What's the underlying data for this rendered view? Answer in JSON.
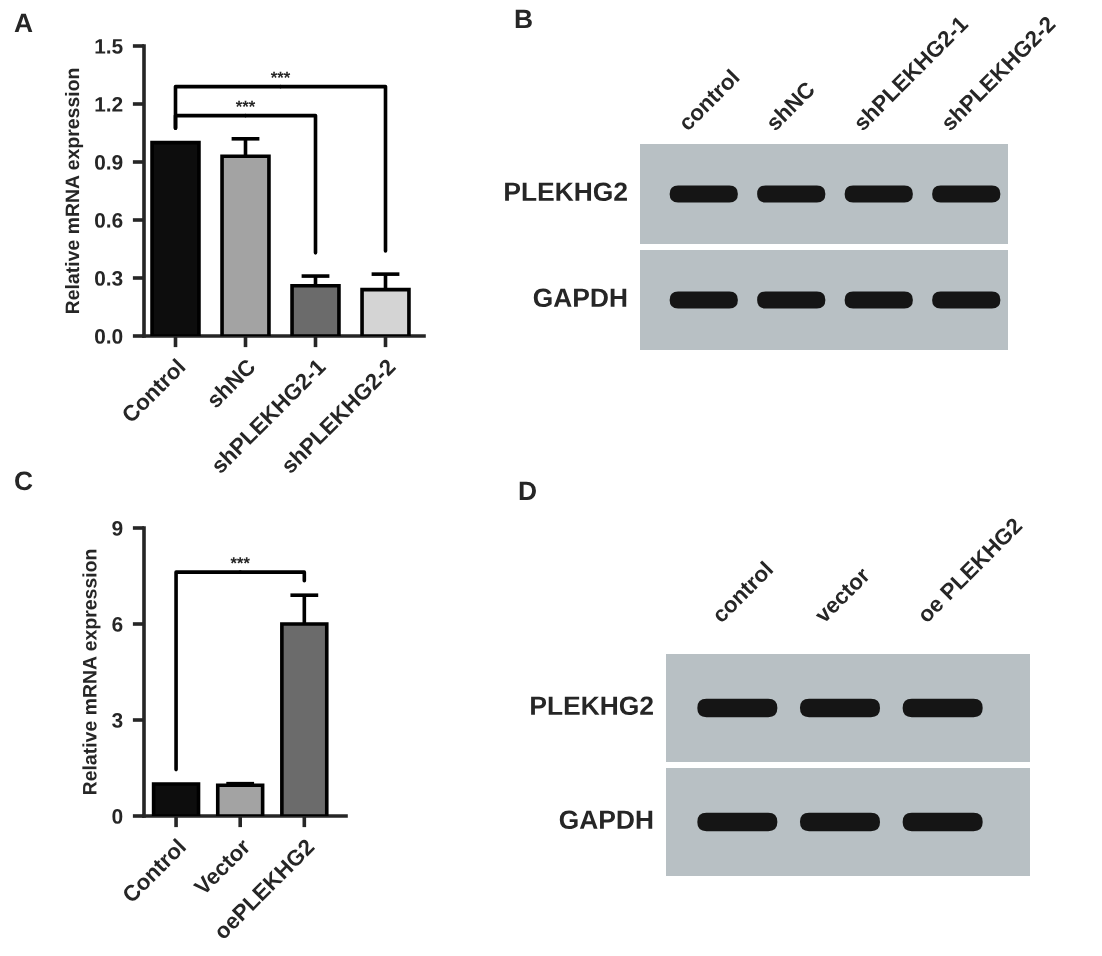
{
  "chart_data": [
    {
      "type": "bar",
      "title": "A",
      "categories": [
        "Control",
        "shNC",
        "shPLEKHG2-1",
        "shPLEKHG2-2"
      ],
      "values": [
        1.0,
        0.93,
        0.26,
        0.24
      ],
      "errors": [
        null,
        0.09,
        0.05,
        0.08
      ],
      "colors": [
        "#0d0d0d",
        "#a3a3a3",
        "#6b6b6b",
        "#d4d4d4"
      ],
      "ylabel": "Relative mRNA expression",
      "ylim": [
        0,
        1.5
      ],
      "yticks": [
        {
          "value": 0,
          "label": "0.0"
        },
        0.3,
        0.6,
        0.9,
        1.2,
        1.5
      ],
      "annotations": [
        "***",
        "***"
      ]
    },
    {
      "type": "other",
      "title": "B",
      "categories": [
        "control",
        "shNC",
        "shPLEKHG2-1",
        "shPLEKHG2-2"
      ],
      "y_categories": [
        "PLEKHG2",
        "GAPDH"
      ]
    },
    {
      "type": "bar",
      "title": "C",
      "categories": [
        "Control",
        "Vector",
        "oePLEKHG2"
      ],
      "values": [
        1.0,
        0.96,
        6.0
      ],
      "errors": [
        null,
        0.05,
        0.9
      ],
      "colors": [
        "#0d0d0d",
        "#a3a3a3",
        "#6b6b6b"
      ],
      "ylabel": "Relative mRNA expression",
      "ylim": [
        0,
        9
      ],
      "yticks": [
        0,
        3,
        6,
        9
      ],
      "annotations": [
        "***"
      ]
    },
    {
      "type": "other",
      "title": "D",
      "categories": [
        "control",
        "vector",
        "oe PLEKHG2"
      ],
      "y_categories": [
        "PLEKHG2",
        "GAPDH"
      ]
    }
  ]
}
